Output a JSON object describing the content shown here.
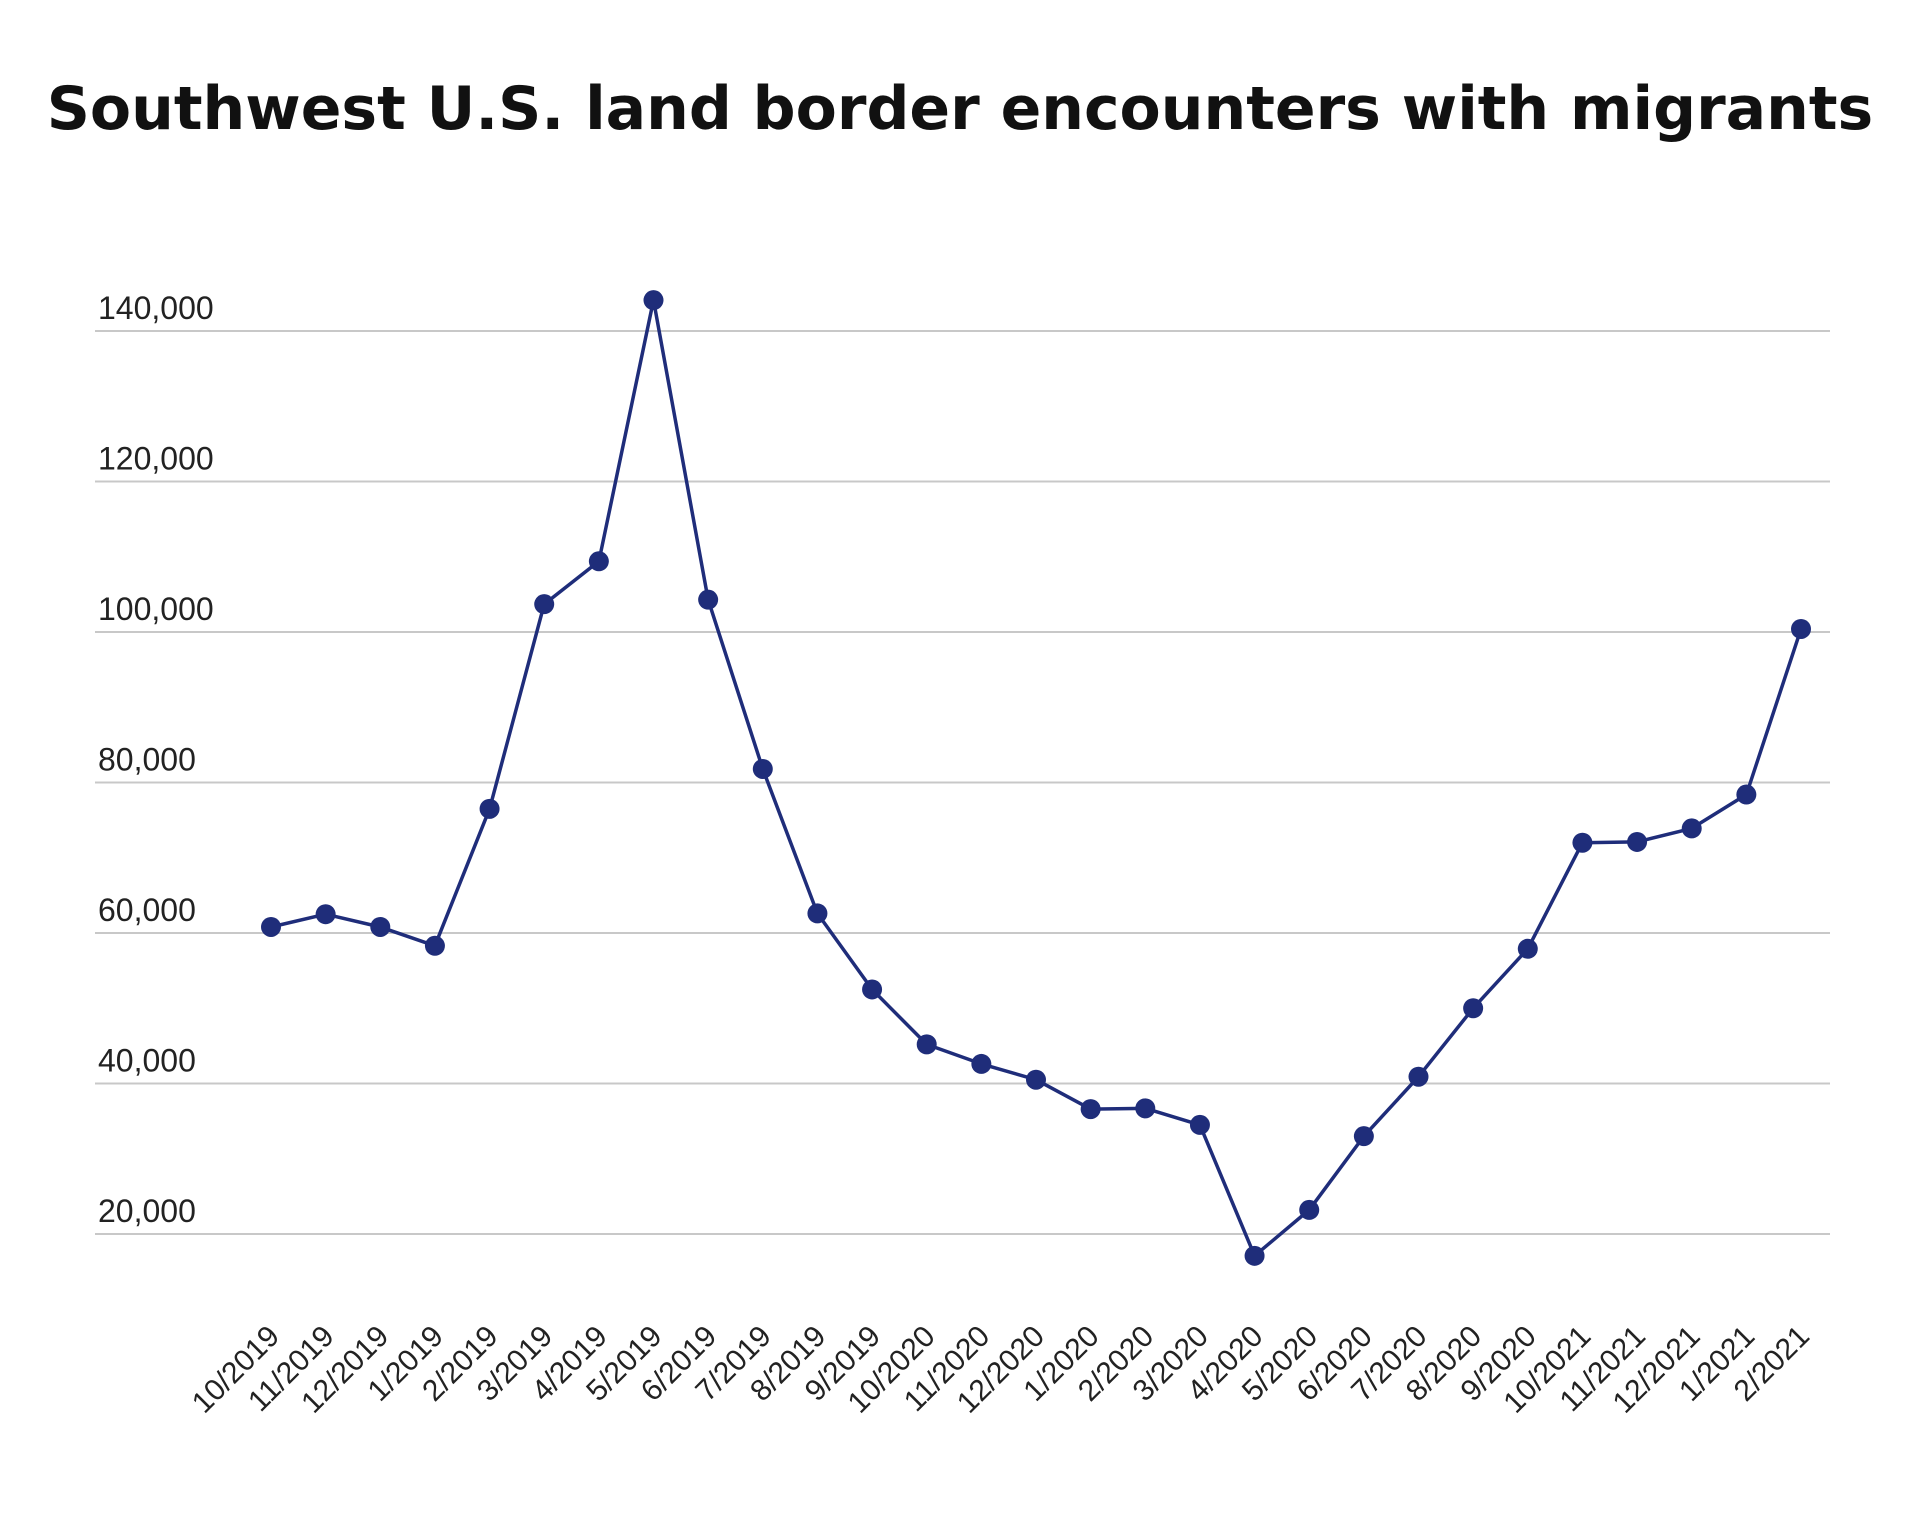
{
  "chart_data": {
    "type": "line",
    "title": "Southwest U.S. land border encounters with migrants",
    "xlabel": "",
    "ylabel": "",
    "ylim": [
      5000,
      145000
    ],
    "yticks": [
      20000,
      40000,
      60000,
      80000,
      100000,
      120000,
      140000
    ],
    "ytick_labels": [
      "20,000",
      "40,000",
      "60,000",
      "80,000",
      "100,000",
      "120,000",
      "140,000"
    ],
    "grid": true,
    "legend": "none",
    "colors": {
      "line": "#1f2d7a",
      "marker": "#1f2d7a",
      "grid": "#c8c8c8"
    },
    "categories": [
      "10/2019",
      "11/2019",
      "12/2019",
      "1/2019",
      "2/2019",
      "3/2019",
      "4/2019",
      "5/2019",
      "6/2019",
      "7/2019",
      "8/2019",
      "9/2019",
      "10/2020",
      "11/2020",
      "12/2020",
      "1/2020",
      "2/2020",
      "3/2020",
      "4/2020",
      "5/2020",
      "6/2020",
      "7/2020",
      "8/2020",
      "9/2020",
      "10/2021",
      "11/2021",
      "12/2021",
      "1/2021",
      "2/2021"
    ],
    "series": [
      {
        "values": [
          60800,
          62500,
          60800,
          58300,
          76500,
          103700,
          109400,
          144100,
          104300,
          81800,
          62600,
          52500,
          45200,
          42600,
          40500,
          36600,
          36700,
          34500,
          17100,
          23200,
          33000,
          40900,
          50000,
          57900,
          72000,
          72100,
          73900,
          78400,
          100400
        ]
      }
    ]
  }
}
